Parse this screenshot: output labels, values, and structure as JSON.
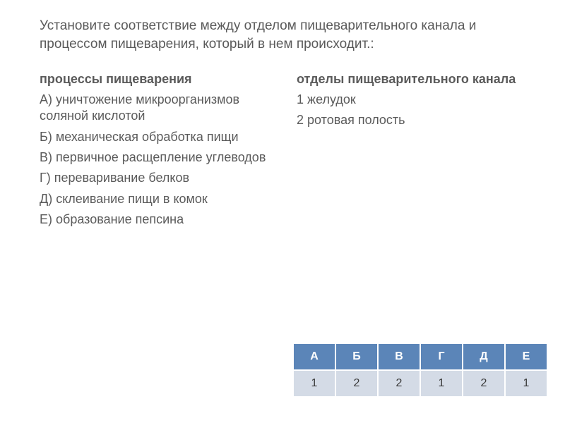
{
  "instruction": "Установите соответствие между отделом пищеварительного канала и процессом пищеварения, который в нем происходит.:",
  "left": {
    "heading": "процессы пищеварения",
    "items": [
      {
        "letter": "А)",
        "text": "уничтожение микроорганизмов соляной кислотой"
      },
      {
        "letter": "Б)",
        "text": "механическая обработка пищи"
      },
      {
        "letter": "В)",
        "text": "первичное расщепление углеводов"
      },
      {
        "letter": "Г)",
        "text": "переваривание белков"
      },
      {
        "letter": "Д)",
        "text": "склеивание пищи в комок"
      },
      {
        "letter": "Е)",
        "text": "образование пепсина"
      }
    ]
  },
  "right": {
    "heading": "отделы пищеварительного канала",
    "items": [
      {
        "num": "1",
        "text": "желудок"
      },
      {
        "num": "2",
        "text": "ротовая полость"
      }
    ]
  },
  "answer_table": {
    "header_bg": "#5b85b8",
    "header_fg": "#ffffff",
    "value_bg": "#d4dbe6",
    "value_fg": "#3a3a3a",
    "headers": [
      "А",
      "Б",
      "В",
      "Г",
      "Д",
      "Е"
    ],
    "values": [
      "1",
      "2",
      "2",
      "1",
      "2",
      "1"
    ]
  }
}
